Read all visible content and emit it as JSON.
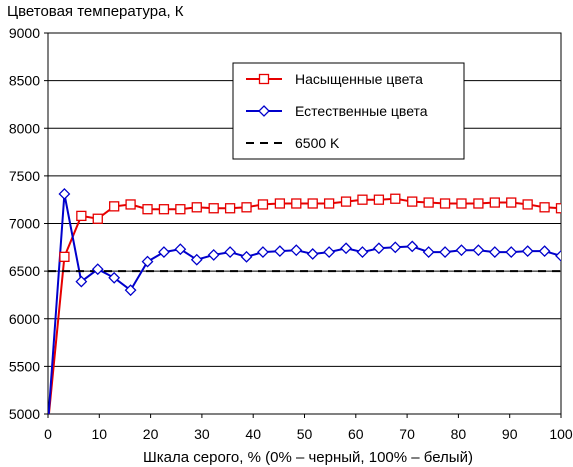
{
  "chart_data": {
    "type": "line",
    "ylabel": "Цветовая температура, К",
    "xlabel": "Шкала серого, % (0% – черный, 100% – белый)",
    "xlim": [
      0,
      100
    ],
    "ylim": [
      5000,
      9000
    ],
    "xticks": [
      0,
      10,
      20,
      30,
      40,
      50,
      60,
      70,
      80,
      90,
      100
    ],
    "yticks": [
      5000,
      5500,
      6000,
      6500,
      7000,
      7500,
      8000,
      8500,
      9000
    ],
    "grid": "horizontal",
    "legend_position": "top-right",
    "x": [
      0,
      3.2,
      6.5,
      9.7,
      12.9,
      16.1,
      19.4,
      22.6,
      25.8,
      29.0,
      32.3,
      35.5,
      38.7,
      41.9,
      45.2,
      48.4,
      51.6,
      54.8,
      58.1,
      61.3,
      64.5,
      67.7,
      71.0,
      74.2,
      77.4,
      80.6,
      83.9,
      87.1,
      90.3,
      93.5,
      96.8,
      100
    ],
    "series": [
      {
        "name": "Насыщенные цвета",
        "color": "#e60000",
        "marker": "square",
        "values": [
          4900,
          6650,
          7080,
          7050,
          7180,
          7200,
          7150,
          7150,
          7150,
          7170,
          7160,
          7160,
          7170,
          7200,
          7210,
          7210,
          7210,
          7210,
          7230,
          7250,
          7250,
          7260,
          7230,
          7220,
          7210,
          7210,
          7210,
          7220,
          7220,
          7200,
          7170,
          7160
        ]
      },
      {
        "name": "Естественные цвета",
        "color": "#0000cc",
        "marker": "diamond",
        "values": [
          4900,
          7310,
          6390,
          6520,
          6430,
          6300,
          6600,
          6700,
          6730,
          6620,
          6670,
          6700,
          6650,
          6700,
          6710,
          6720,
          6680,
          6700,
          6740,
          6700,
          6740,
          6750,
          6760,
          6700,
          6700,
          6720,
          6720,
          6700,
          6700,
          6710,
          6710,
          6660
        ]
      },
      {
        "name": "6500 K",
        "color": "#000000",
        "marker": "none",
        "dashed": true,
        "values": [
          6500,
          6500,
          6500,
          6500,
          6500,
          6500,
          6500,
          6500,
          6500,
          6500,
          6500,
          6500,
          6500,
          6500,
          6500,
          6500,
          6500,
          6500,
          6500,
          6500,
          6500,
          6500,
          6500,
          6500,
          6500,
          6500,
          6500,
          6500,
          6500,
          6500,
          6500,
          6500
        ]
      }
    ]
  }
}
